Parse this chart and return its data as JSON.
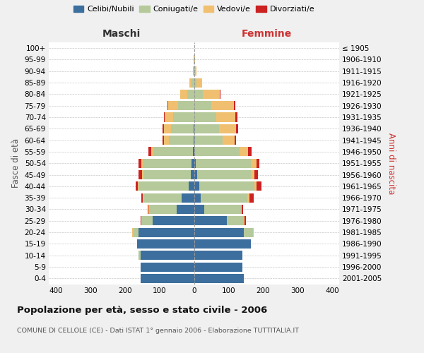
{
  "age_groups": [
    "0-4",
    "5-9",
    "10-14",
    "15-19",
    "20-24",
    "25-29",
    "30-34",
    "35-39",
    "40-44",
    "45-49",
    "50-54",
    "55-59",
    "60-64",
    "65-69",
    "70-74",
    "75-79",
    "80-84",
    "85-89",
    "90-94",
    "95-99",
    "100+"
  ],
  "birth_years": [
    "2001-2005",
    "1996-2000",
    "1991-1995",
    "1986-1990",
    "1981-1985",
    "1976-1980",
    "1971-1975",
    "1966-1970",
    "1961-1965",
    "1956-1960",
    "1951-1955",
    "1946-1950",
    "1941-1945",
    "1936-1940",
    "1931-1935",
    "1926-1930",
    "1921-1925",
    "1916-1920",
    "1911-1915",
    "1906-1910",
    "≤ 1905"
  ],
  "colors": {
    "celibi": "#3d6f9e",
    "coniugati": "#b5c99a",
    "vedovi": "#f0c070",
    "divorziati": "#cc2222"
  },
  "maschi": {
    "celibi": [
      155,
      155,
      155,
      165,
      160,
      120,
      50,
      35,
      15,
      10,
      8,
      3,
      2,
      2,
      0,
      0,
      0,
      0,
      0,
      0,
      0
    ],
    "coniugati": [
      0,
      0,
      5,
      0,
      15,
      30,
      80,
      110,
      145,
      135,
      140,
      115,
      70,
      65,
      60,
      45,
      20,
      8,
      2,
      1,
      0
    ],
    "vedovi": [
      0,
      0,
      0,
      0,
      3,
      3,
      2,
      3,
      3,
      5,
      5,
      5,
      15,
      20,
      25,
      30,
      20,
      5,
      2,
      0,
      0
    ],
    "divorziati": [
      0,
      0,
      0,
      0,
      0,
      2,
      2,
      5,
      5,
      10,
      8,
      8,
      3,
      3,
      2,
      2,
      0,
      0,
      0,
      0,
      0
    ]
  },
  "femmine": {
    "nubili": [
      145,
      140,
      140,
      165,
      145,
      95,
      30,
      20,
      15,
      10,
      5,
      2,
      2,
      2,
      0,
      0,
      0,
      0,
      0,
      0,
      0
    ],
    "coniugate": [
      0,
      0,
      0,
      0,
      25,
      50,
      105,
      135,
      160,
      155,
      160,
      130,
      80,
      70,
      65,
      50,
      25,
      8,
      3,
      1,
      0
    ],
    "vedove": [
      0,
      0,
      0,
      0,
      2,
      2,
      3,
      5,
      5,
      10,
      15,
      25,
      35,
      50,
      55,
      65,
      50,
      15,
      5,
      2,
      0
    ],
    "divorziate": [
      0,
      0,
      0,
      0,
      0,
      3,
      5,
      12,
      15,
      10,
      10,
      10,
      5,
      5,
      5,
      5,
      2,
      0,
      0,
      0,
      0
    ]
  },
  "xlim": 420,
  "xticks": [
    -400,
    -300,
    -200,
    -100,
    0,
    100,
    200,
    300,
    400
  ],
  "title": "Popolazione per età, sesso e stato civile - 2006",
  "subtitle": "COMUNE DI CELLOLE (CE) - Dati ISTAT 1° gennaio 2006 - Elaborazione TUTTITALIA.IT",
  "ylabel_left": "Fasce di età",
  "ylabel_right": "Anni di nascita",
  "xlabel_maschi": "Maschi",
  "xlabel_femmine": "Femmine",
  "background_color": "#f0f0f0",
  "plot_bg_color": "#ffffff",
  "legend_labels": [
    "Celibi/Nubili",
    "Coniugati/e",
    "Vedovi/e",
    "Divorziati/e"
  ]
}
